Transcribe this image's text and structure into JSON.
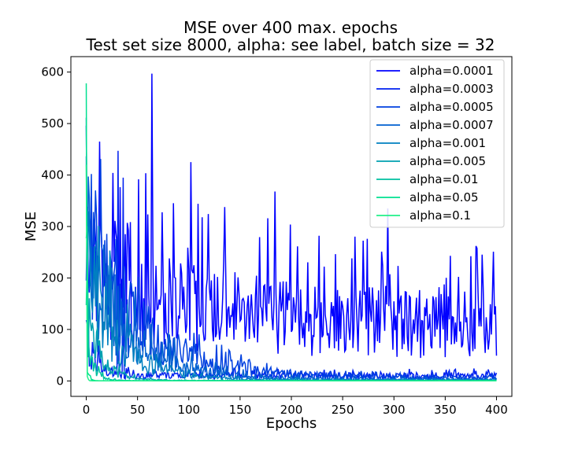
{
  "chart_data": {
    "type": "line",
    "title": "MSE  over 400 max. epochs",
    "subtitle": "Test set size 8000, alpha: see label, batch size = 32",
    "xlabel": "Epochs",
    "ylabel": "MSE",
    "xlim": [
      -15,
      415
    ],
    "ylim": [
      -30,
      630
    ],
    "xticks": [
      0,
      50,
      100,
      150,
      200,
      250,
      300,
      350,
      400
    ],
    "yticks": [
      0,
      100,
      200,
      300,
      400,
      500,
      600
    ],
    "legend_position": "top-right",
    "grid": false,
    "series": [
      {
        "name": "alpha=0.0001",
        "color": "#0000ff",
        "start": 250,
        "plateau": 200,
        "end": 105,
        "decay": 120,
        "noise": 0.5,
        "spikes": [
          [
            13,
            465
          ],
          [
            64,
            597
          ],
          [
            102,
            425
          ],
          [
            184,
            368
          ],
          [
            294,
            335
          ]
        ],
        "seed": 1
      },
      {
        "name": "alpha=0.0003",
        "color": "#0020f0",
        "start": 240,
        "plateau": 10,
        "end": 10,
        "decay": 75,
        "noise": 0.55,
        "spikes": [
          [
            31,
            447
          ],
          [
            36,
            395
          ]
        ],
        "seed": 2
      },
      {
        "name": "alpha=0.0005",
        "color": "#0040e0",
        "start": 260,
        "plateau": 0,
        "end": 6,
        "decay": 55,
        "noise": 0.55,
        "spikes": [
          [
            5,
            402
          ],
          [
            9,
            370
          ]
        ],
        "seed": 3
      },
      {
        "name": "alpha=0.0007",
        "color": "#0060d0",
        "start": 240,
        "plateau": 0,
        "end": 3,
        "decay": 42,
        "noise": 0.55,
        "spikes": [
          [
            3,
            355
          ]
        ],
        "seed": 4
      },
      {
        "name": "alpha=0.001",
        "color": "#0080c0",
        "start": 220,
        "plateau": 0,
        "end": 2,
        "decay": 32,
        "noise": 0.55,
        "spikes": [
          [
            2,
            330
          ]
        ],
        "seed": 5
      },
      {
        "name": "alpha=0.005",
        "color": "#00a0b0",
        "start": 130,
        "plateau": 0,
        "end": 1,
        "decay": 14,
        "noise": 0.5,
        "spikes": [
          [
            1,
            300
          ]
        ],
        "seed": 6
      },
      {
        "name": "alpha=0.01",
        "color": "#00c0a0",
        "start": 80,
        "plateau": 0,
        "end": 0.5,
        "decay": 7,
        "noise": 0.45,
        "spikes": [
          [
            1,
            250
          ]
        ],
        "seed": 7
      },
      {
        "name": "alpha=0.05",
        "color": "#00e090",
        "start": 40,
        "plateau": 0,
        "end": 0.3,
        "decay": 2,
        "noise": 0.3,
        "spikes": [
          [
            0,
            578
          ]
        ],
        "seed": 8
      },
      {
        "name": "alpha=0.1",
        "color": "#20f08a",
        "start": 20,
        "plateau": 0,
        "end": 0.2,
        "decay": 1,
        "noise": 0.3,
        "spikes": [
          [
            0,
            420
          ]
        ],
        "seed": 9
      }
    ]
  }
}
